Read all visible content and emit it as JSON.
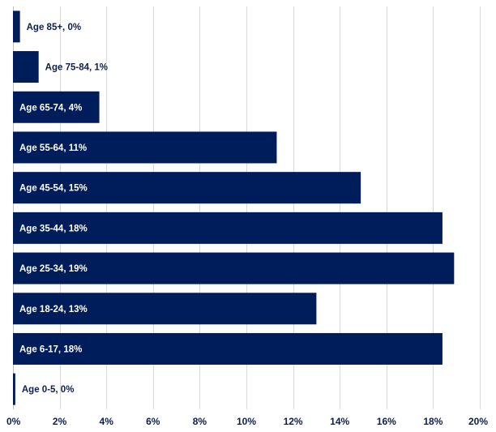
{
  "chart_data": {
    "type": "bar",
    "orientation": "horizontal",
    "categories": [
      "Age 85+",
      "Age 75-84",
      "Age 65-74",
      "Age 55-64",
      "Age 45-54",
      "Age 35-44",
      "Age 25-34",
      "Age 18-24",
      "Age 6-17",
      "Age 0-5"
    ],
    "values": [
      0.3,
      1.1,
      3.7,
      11.3,
      14.9,
      18.4,
      18.9,
      13.0,
      18.4,
      0.1
    ],
    "data_labels": [
      "Age 85+, 0%",
      "Age 75-84, 1%",
      "Age 65-74, 4%",
      "Age 55-64, 11%",
      "Age 45-54, 15%",
      "Age 35-44, 18%",
      "Age 25-34, 19%",
      "Age 18-24, 13%",
      "Age 6-17, 18%",
      "Age 0-5, 0%"
    ],
    "xlim": [
      0,
      20
    ],
    "xticks": [
      0,
      2,
      4,
      6,
      8,
      10,
      12,
      14,
      16,
      18,
      20
    ],
    "xtick_labels": [
      "0%",
      "2%",
      "4%",
      "6%",
      "8%",
      "10%",
      "12%",
      "14%",
      "16%",
      "18%",
      "20%"
    ],
    "grid": "vertical",
    "legend": "none",
    "title": "",
    "xlabel": "",
    "ylabel": ""
  },
  "colors": {
    "bar": "#001d5b",
    "label_inside": "#ffffff",
    "label_outside": "#0d1f4d",
    "tick_text": "#0d1f4d"
  }
}
